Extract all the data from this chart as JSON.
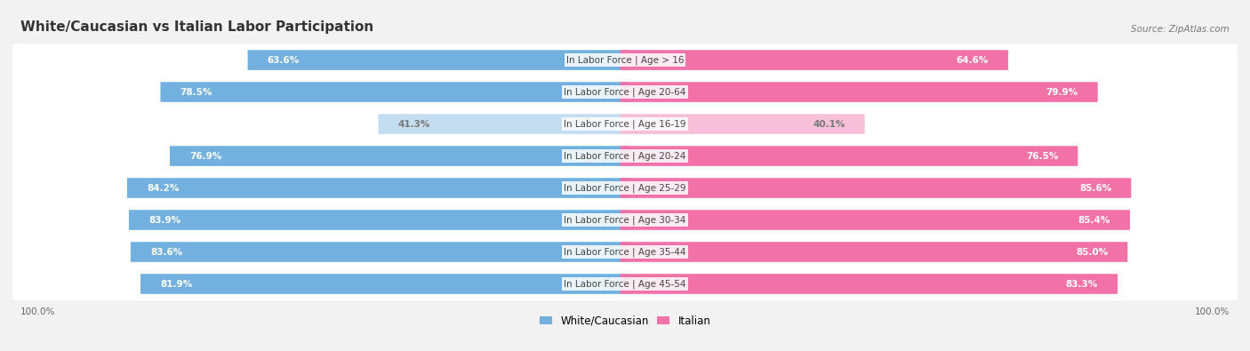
{
  "title": "White/Caucasian vs Italian Labor Participation",
  "source": "Source: ZipAtlas.com",
  "categories": [
    "In Labor Force | Age > 16",
    "In Labor Force | Age 20-64",
    "In Labor Force | Age 16-19",
    "In Labor Force | Age 20-24",
    "In Labor Force | Age 25-29",
    "In Labor Force | Age 30-34",
    "In Labor Force | Age 35-44",
    "In Labor Force | Age 45-54"
  ],
  "white_values": [
    63.6,
    78.5,
    41.3,
    76.9,
    84.2,
    83.9,
    83.6,
    81.9
  ],
  "italian_values": [
    64.6,
    79.9,
    40.1,
    76.5,
    85.6,
    85.4,
    85.0,
    83.3
  ],
  "white_color": "#72b0e0",
  "white_color_light": "#c5ddf0",
  "italian_color": "#f272a8",
  "italian_color_light": "#f7c0d8",
  "background_color": "#f2f2f2",
  "row_bg_color": "#e8e8e8",
  "max_val": 100.0,
  "title_fontsize": 11,
  "label_fontsize": 7.5,
  "value_fontsize": 7.5,
  "legend_fontsize": 8.5
}
